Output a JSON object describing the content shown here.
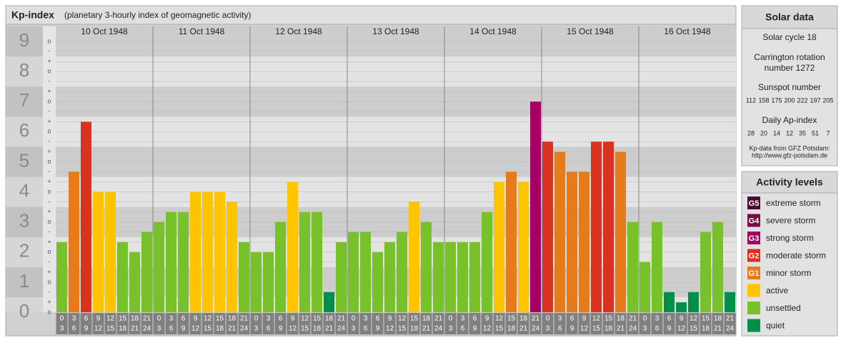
{
  "chart_data": {
    "type": "bar",
    "title": "Kp-index",
    "subtitle": "(planetary 3-hourly index of geomagnetic activity)",
    "days": [
      "10 Oct 1948",
      "11 Oct 1948",
      "12 Oct 1948",
      "13 Oct 1948",
      "14 Oct 1948",
      "15 Oct 1948",
      "16 Oct 1948"
    ],
    "time_slots": [
      [
        "0",
        "3"
      ],
      [
        "3",
        "6"
      ],
      [
        "6",
        "9"
      ],
      [
        "9",
        "12"
      ],
      [
        "12",
        "15"
      ],
      [
        "15",
        "18"
      ],
      [
        "18",
        "21"
      ],
      [
        "21",
        "24"
      ]
    ],
    "values": [
      2.33,
      4.67,
      6.33,
      4,
      4,
      2.33,
      2,
      2.67,
      3,
      3.33,
      3.33,
      4,
      4,
      4,
      3.67,
      2.33,
      2,
      2,
      3,
      4.33,
      3.33,
      3.33,
      0.67,
      2.33,
      2.67,
      2.67,
      2,
      2.33,
      2.67,
      3.67,
      3,
      2.33,
      2.33,
      2.33,
      2.33,
      3.33,
      4.33,
      4.67,
      4.33,
      7,
      5.67,
      5.33,
      4.67,
      4.67,
      5.67,
      5.67,
      5.33,
      3,
      1.67,
      3,
      0.67,
      0.33,
      0.67,
      2.67,
      3,
      0.67
    ],
    "bar_colors": [
      "#77c12a",
      "#e57b1b",
      "#d9331f",
      "#ffc400",
      "#ffc400",
      "#77c12a",
      "#77c12a",
      "#77c12a",
      "#77c12a",
      "#77c12a",
      "#77c12a",
      "#ffc400",
      "#ffc400",
      "#ffc400",
      "#ffc400",
      "#77c12a",
      "#77c12a",
      "#77c12a",
      "#77c12a",
      "#ffc400",
      "#77c12a",
      "#77c12a",
      "#00904a",
      "#77c12a",
      "#77c12a",
      "#77c12a",
      "#77c12a",
      "#77c12a",
      "#77c12a",
      "#ffc400",
      "#77c12a",
      "#77c12a",
      "#77c12a",
      "#77c12a",
      "#77c12a",
      "#77c12a",
      "#ffc400",
      "#e57b1b",
      "#ffc400",
      "#a50063",
      "#d9331f",
      "#e57b1b",
      "#e57b1b",
      "#e57b1b",
      "#d9331f",
      "#d9331f",
      "#e57b1b",
      "#77c12a",
      "#77c12a",
      "#77c12a",
      "#00904a",
      "#00904a",
      "#00904a",
      "#77c12a",
      "#77c12a",
      "#00904a"
    ],
    "ylim": [
      0,
      9.5
    ],
    "yticks": [
      0,
      1,
      2,
      3,
      4,
      5,
      6,
      7,
      8,
      9
    ],
    "minor_yticks": [
      {
        "value": 0,
        "label": "o"
      },
      {
        "value": 0.33,
        "label": "+"
      },
      {
        "value": 0.67,
        "label": "-"
      },
      {
        "value": 1,
        "label": "o"
      },
      {
        "value": 1.33,
        "label": "+"
      },
      {
        "value": 1.67,
        "label": "-"
      },
      {
        "value": 2,
        "label": "o"
      },
      {
        "value": 2.33,
        "label": "+"
      },
      {
        "value": 2.67,
        "label": "-"
      },
      {
        "value": 3,
        "label": "o"
      },
      {
        "value": 3.33,
        "label": "+"
      },
      {
        "value": 3.67,
        "label": "-"
      },
      {
        "value": 4,
        "label": "o"
      },
      {
        "value": 4.33,
        "label": "+"
      },
      {
        "value": 4.67,
        "label": "-"
      },
      {
        "value": 5,
        "label": "o"
      },
      {
        "value": 5.33,
        "label": "+"
      },
      {
        "value": 5.67,
        "label": "-"
      },
      {
        "value": 6,
        "label": "o"
      },
      {
        "value": 6.33,
        "label": "+"
      },
      {
        "value": 6.67,
        "label": "-"
      },
      {
        "value": 7,
        "label": "o"
      },
      {
        "value": 7.33,
        "label": "+"
      },
      {
        "value": 7.67,
        "label": "-"
      },
      {
        "value": 8,
        "label": "o"
      },
      {
        "value": 8.33,
        "label": "+"
      },
      {
        "value": 8.67,
        "label": "-"
      },
      {
        "value": 9,
        "label": "o"
      }
    ],
    "grid": true,
    "solar": {
      "title": "Solar data",
      "cycle": "Solar cycle 18",
      "rotation": [
        "Carrington rotation",
        "number 1272"
      ],
      "sunspot_title": "Sunspot number",
      "sunspot": [
        112,
        158,
        175,
        200,
        222,
        197,
        205
      ],
      "ap_title": "Daily Ap-index",
      "ap": [
        28,
        20,
        14,
        12,
        35,
        51,
        7
      ],
      "source": [
        "Kp-data from GFZ Potsdam:",
        "http://www.gfz-potsdam.de"
      ]
    },
    "legend": {
      "title": "Activity levels",
      "levels": [
        {
          "badge": "G5",
          "label": "extreme storm",
          "color": "#4d0a2e"
        },
        {
          "badge": "G4",
          "label": "severe storm",
          "color": "#7a0b47"
        },
        {
          "badge": "G3",
          "label": "strong storm",
          "color": "#a50063"
        },
        {
          "badge": "G2",
          "label": "moderate storm",
          "color": "#d9331f"
        },
        {
          "badge": "G1",
          "label": "minor storm",
          "color": "#e57b1b"
        },
        {
          "label": "active",
          "color": "#ffc400"
        },
        {
          "label": "unsettled",
          "color": "#77c12a"
        },
        {
          "label": "quiet",
          "color": "#00904a"
        }
      ]
    }
  }
}
